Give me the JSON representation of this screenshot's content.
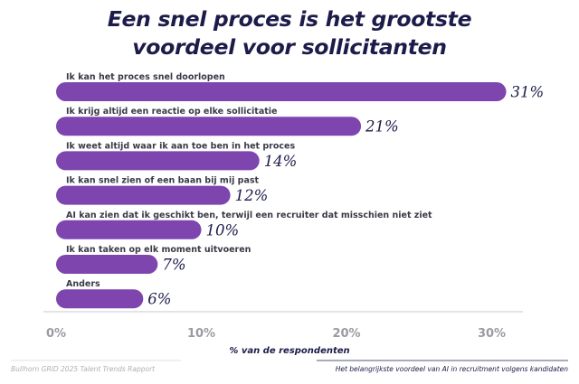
{
  "title_line1": "Een snel proces is het grootste",
  "title_line2": "voordeel voor sollicitanten",
  "footer_left": "Bullhorn GRID 2025 Talent Trends Rapport",
  "footer_right": "Het belangrijkste voordeel van AI in recruitment volgens kandidaten",
  "colors": {
    "bar": "#7e45ae",
    "title": "#1c1b4a",
    "axis": "#c8c8cc",
    "tick": "#9a9aa2"
  },
  "chart_data": {
    "type": "bar",
    "orientation": "horizontal",
    "title": "Een snel proces is het grootste voordeel voor sollicitanten",
    "xlabel": "% van de respondenten",
    "ylabel": "",
    "xlim": [
      0,
      32
    ],
    "xticks": [
      0,
      10,
      20,
      30
    ],
    "xtick_labels": [
      "0%",
      "10%",
      "20%",
      "30%"
    ],
    "grid": false,
    "categories": [
      "Ik kan het proces snel doorlopen",
      "Ik krijg altijd een reactie op elke sollicitatie",
      "Ik weet altijd waar ik aan toe ben in het proces",
      "Ik kan snel zien of een baan bij mij past",
      "AI kan zien dat ik geschikt ben, terwijl een recruiter dat misschien niet ziet",
      "Ik kan taken op elk moment uitvoeren",
      "Anders"
    ],
    "values": [
      31,
      21,
      14,
      12,
      10,
      7,
      6
    ],
    "value_labels": [
      "31%",
      "21%",
      "14%",
      "12%",
      "10%",
      "7%",
      "6%"
    ]
  }
}
